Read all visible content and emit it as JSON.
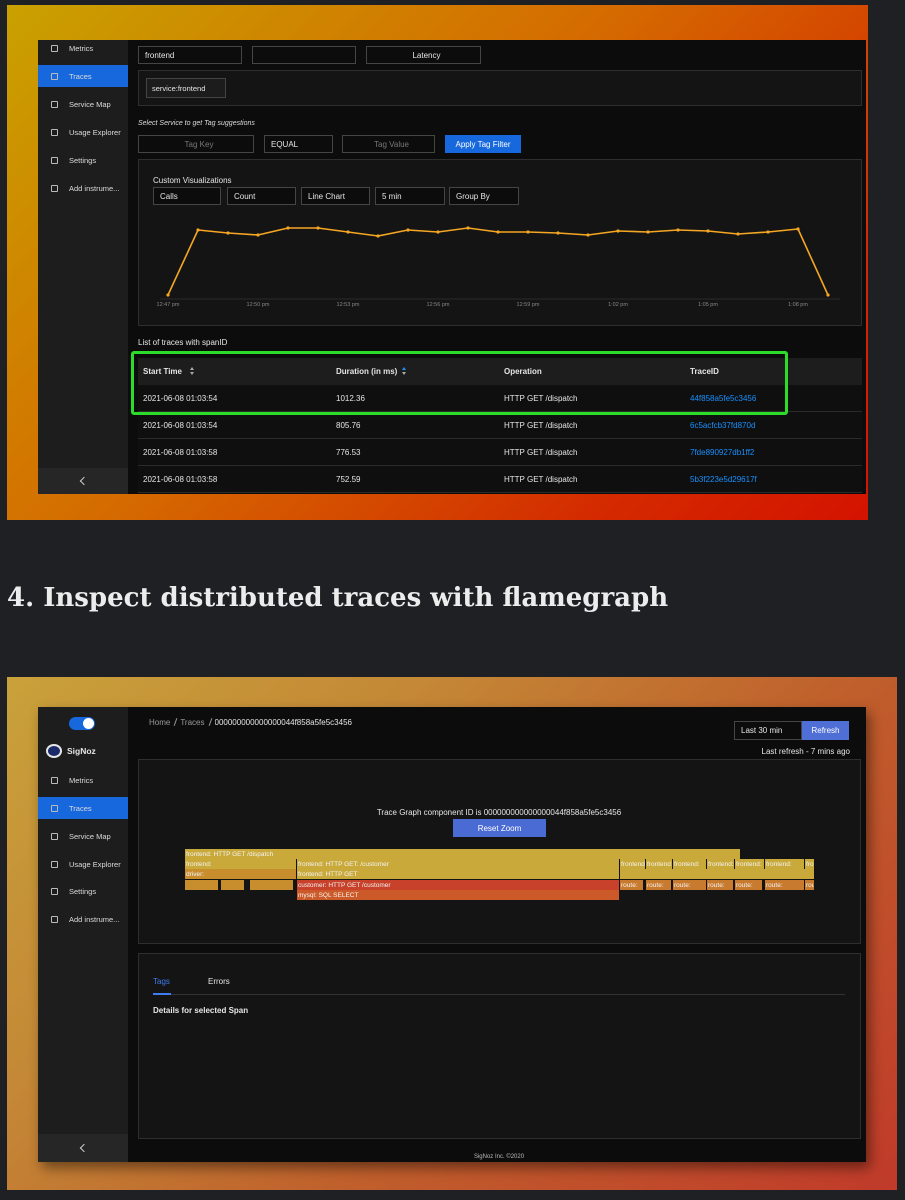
{
  "screenshot_1": {
    "sidebar": [
      "Metrics",
      "Traces",
      "Service Map",
      "Usage Explorer",
      "Settings",
      "Add instrume..."
    ],
    "service_select": "frontend",
    "latency_button": "Latency",
    "tag_chip": "service:frontend",
    "tag_hint": "Select Service to get Tag suggestions",
    "tag_key": "Tag Key",
    "tag_operator": "EQUAL",
    "tag_value": "Tag Value",
    "apply_button": "Apply Tag Filter",
    "visualization": {
      "title": "Custom Visualizations",
      "controls": [
        "Calls",
        "Count",
        "Line Chart",
        "5 min",
        "Group By"
      ],
      "x_labels": [
        "12:47 pm",
        "12:50 pm",
        "12:53 pm",
        "12:56 pm",
        "12:59 pm",
        "1:02 pm",
        "1:05 pm",
        "1:08 pm"
      ],
      "values": [
        2,
        67,
        64,
        62,
        69,
        69,
        65,
        61,
        67,
        65,
        69,
        65,
        65,
        64,
        62,
        66,
        65,
        67,
        66,
        63,
        65,
        68,
        2
      ]
    },
    "list_title": "List of traces with spanID",
    "table": {
      "headers": [
        "Start Time",
        "Duration (in ms)",
        "Operation",
        "TraceID"
      ],
      "rows": [
        [
          "2021-06-08 01:03:54",
          "1012.36",
          "HTTP GET /dispatch",
          "44f858a5fe5c3456"
        ],
        [
          "2021-06-08 01:03:54",
          "805.76",
          "HTTP GET /dispatch",
          "6c5acfcb37fd870d"
        ],
        [
          "2021-06-08 01:03:58",
          "776.53",
          "HTTP GET /dispatch",
          "7fde890927db1ff2"
        ],
        [
          "2021-06-08 01:03:58",
          "752.59",
          "HTTP GET /dispatch",
          "5b3f223e5d29617f"
        ]
      ]
    }
  },
  "heading": "4. Inspect distributed traces with flamegraph",
  "screenshot_2": {
    "logo": "SigNoz",
    "sidebar": [
      "Metrics",
      "Traces",
      "Service Map",
      "Usage Explorer",
      "Settings",
      "Add instrume..."
    ],
    "breadcrumb": [
      "Home",
      "Traces",
      "000000000000000044f858a5fe5c3456"
    ],
    "time_select": "Last 30 min",
    "refresh_button": "Refresh",
    "last_refresh": "Last refresh - 7 mins ago",
    "graph_title": "Trace Graph component ID is 000000000000000044f858a5fe5c3456",
    "reset_button": "Reset Zoom",
    "spans": [
      "frontend: HTTP GET /dispatch",
      "frontend:",
      "frontend: HTTP GET: /customer",
      "frontend",
      "frontend",
      "frontend:",
      "frontend:",
      "frontend:",
      "frontend:",
      "frontend:",
      "driver:",
      "frontend: HTTP GET",
      "customer: HTTP GET /customer",
      "route:",
      "route:",
      "route:",
      "route:",
      "route:",
      "route:",
      "route:",
      "mysql: SQL SELECT"
    ],
    "tabs": [
      "Tags",
      "Errors"
    ],
    "details_title": "Details for selected Span",
    "footer": "SigNoz Inc. ©2020"
  }
}
